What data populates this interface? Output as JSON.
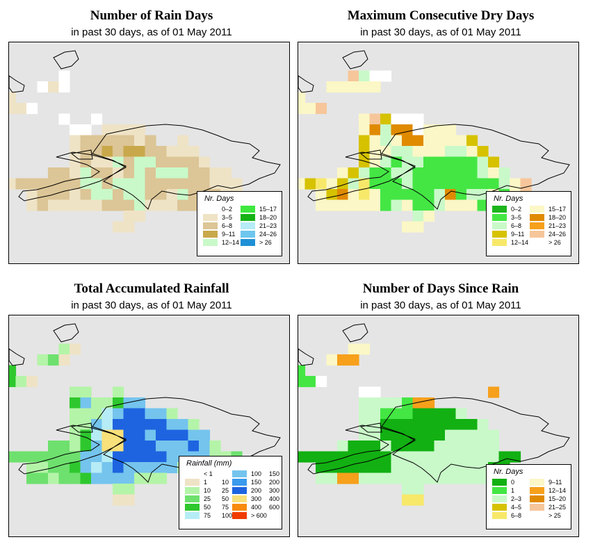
{
  "panels": [
    {
      "title": "Number of Rain Days",
      "subtitle": "in past 30 days, as of  01 May 2011",
      "legend_title": "Nr. Days",
      "legend": [
        {
          "label": "0–2",
          "color": "#ffffff"
        },
        {
          "label": "3–5",
          "color": "#efe3c6"
        },
        {
          "label": "6–8",
          "color": "#dcc596"
        },
        {
          "label": "9–11",
          "color": "#c8a84a"
        },
        {
          "label": "12–14",
          "color": "#c9f9c9"
        },
        {
          "label": "15–17",
          "color": "#3ee83e"
        },
        {
          "label": "18–20",
          "color": "#16b216"
        },
        {
          "label": "21–23",
          "color": "#b6ecf6"
        },
        {
          "label": "24–26",
          "color": "#6ec6ee"
        },
        {
          "label": "> 26",
          "color": "#1e90d6"
        }
      ]
    },
    {
      "title": "Maximum Consecutive Dry Days",
      "subtitle": "in past 30 days, as of  01 May 2011",
      "legend_title": "Nr. Days",
      "legend": [
        {
          "label": "0–2",
          "color": "#1cb51c"
        },
        {
          "label": "3–5",
          "color": "#44e644"
        },
        {
          "label": "6–8",
          "color": "#c9f9c9"
        },
        {
          "label": "9–11",
          "color": "#d6c200"
        },
        {
          "label": "12–14",
          "color": "#f8e86a"
        },
        {
          "label": "15–17",
          "color": "#fbf7c6"
        },
        {
          "label": "18–20",
          "color": "#e08a00"
        },
        {
          "label": "21–23",
          "color": "#f6a01c"
        },
        {
          "label": "24–26",
          "color": "#f6c69a"
        },
        {
          "label": "> 26",
          "color": "#ffffff"
        }
      ]
    },
    {
      "title": "Total Accumulated Rainfall",
      "subtitle": "in past 30 days, as of  01 May 2011",
      "legend_title": "Rainfall (mm)",
      "legend": [
        {
          "a": "< 1",
          "b": "",
          "color": "#ffffff"
        },
        {
          "a": "1",
          "b": "10",
          "color": "#efe3c6"
        },
        {
          "a": "10",
          "b": "25",
          "color": "#b4f4a8"
        },
        {
          "a": "25",
          "b": "50",
          "color": "#6ee06e"
        },
        {
          "a": "50",
          "b": "75",
          "color": "#2ec82e"
        },
        {
          "a": "75",
          "b": "100",
          "color": "#b6ecf6"
        },
        {
          "a": "100",
          "b": "150",
          "color": "#74c4ee"
        },
        {
          "a": "150",
          "b": "200",
          "color": "#3a9aec"
        },
        {
          "a": "200",
          "b": "300",
          "color": "#1e64e0"
        },
        {
          "a": "300",
          "b": "400",
          "color": "#f8e07a"
        },
        {
          "a": "400",
          "b": "600",
          "color": "#f88a0c"
        },
        {
          "a": "> 600",
          "b": "",
          "color": "#f03c00"
        }
      ]
    },
    {
      "title": "Number of Days Since Rain",
      "subtitle": "in past 30 days, as of  01 May 2011",
      "legend_title": "Nr. Days",
      "legend": [
        {
          "label": "0",
          "color": "#12b012"
        },
        {
          "label": "1",
          "color": "#44e644"
        },
        {
          "label": "2–3",
          "color": "#c9f9c9"
        },
        {
          "label": "4–5",
          "color": "#d6c200"
        },
        {
          "label": "6–8",
          "color": "#f8e86a"
        },
        {
          "label": "9–11",
          "color": "#fbf7c6"
        },
        {
          "label": "12–14",
          "color": "#f6a01c"
        },
        {
          "label": "15–20",
          "color": "#e08a00"
        },
        {
          "label": "21–25",
          "color": "#f6c69a"
        },
        {
          "label": "> 25",
          "color": "#ffffff"
        }
      ]
    }
  ],
  "colors": {
    "background": "#e5e5e5",
    "coastline": "#000000"
  }
}
